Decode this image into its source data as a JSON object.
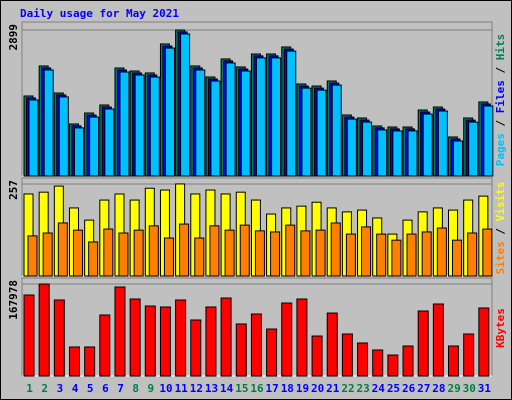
{
  "chart_data": [
    {
      "type": "bar",
      "title": "Daily usage for May 2021",
      "title_color": "#0000ff",
      "ylim": [
        0,
        3018
      ],
      "yticks": [
        2899
      ],
      "legend_separator": " / ",
      "series": [
        {
          "name": "Pages",
          "color": "#00c0ff",
          "values": [
            1510,
            2105,
            1570,
            955,
            1170,
            1330,
            2065,
            2005,
            1965,
            2540,
            2820,
            2105,
            1885,
            2245,
            2085,
            2345,
            2345,
            2480,
            1745,
            1705,
            1805,
            1130,
            1070,
            915,
            895,
            895,
            1230,
            1290,
            695,
            1070,
            1390
          ]
        },
        {
          "name": "Files",
          "color": "#0000ff",
          "values": [
            1550,
            2145,
            1610,
            995,
            1210,
            1370,
            2105,
            2045,
            2005,
            2580,
            2860,
            2145,
            1925,
            2285,
            2125,
            2385,
            2385,
            2520,
            1785,
            1745,
            1845,
            1170,
            1110,
            955,
            935,
            935,
            1270,
            1330,
            735,
            1110,
            1430
          ]
        },
        {
          "name": "Hits",
          "color": "#00805c",
          "values": [
            1589,
            2185,
            1648,
            1033,
            1251,
            1410,
            2145,
            2085,
            2046,
            2622,
            2899,
            2185,
            1966,
            2324,
            2165,
            2423,
            2423,
            2562,
            1827,
            1787,
            1887,
            1211,
            1152,
            993,
            973,
            973,
            1311,
            1370,
            775,
            1152,
            1470
          ]
        }
      ]
    },
    {
      "type": "bar",
      "ylim": [
        0,
        268
      ],
      "yticks": [
        257
      ],
      "legend_separator": " / ",
      "series": [
        {
          "name": "Sites",
          "color": "#ff8000",
          "values": [
            112,
            120,
            148,
            128,
            95,
            131,
            120,
            128,
            140,
            106,
            145,
            106,
            140,
            128,
            142,
            126,
            123,
            142,
            126,
            128,
            148,
            117,
            137,
            117,
            100,
            117,
            123,
            134,
            100,
            120,
            131
          ]
        },
        {
          "name": "Visits",
          "color": "#ffff00",
          "values": [
            229,
            234,
            251,
            190,
            156,
            212,
            229,
            212,
            245,
            240,
            257,
            229,
            240,
            229,
            234,
            212,
            173,
            190,
            195,
            206,
            190,
            179,
            184,
            162,
            117,
            156,
            179,
            190,
            184,
            212,
            223
          ]
        }
      ]
    },
    {
      "type": "bar",
      "ylim": [
        0,
        175300
      ],
      "yticks": [
        167978
      ],
      "legend_separator": " / ",
      "categories": [
        "1",
        "2",
        "3",
        "4",
        "5",
        "6",
        "7",
        "8",
        "9",
        "10",
        "11",
        "12",
        "13",
        "14",
        "15",
        "16",
        "17",
        "18",
        "19",
        "20",
        "21",
        "22",
        "23",
        "24",
        "25",
        "26",
        "27",
        "28",
        "29",
        "30",
        "31"
      ],
      "category_colors": [
        "#008040",
        "#008040",
        "#0000ff",
        "#0000ff",
        "#0000ff",
        "#0000ff",
        "#0000ff",
        "#008040",
        "#008040",
        "#0000ff",
        "#0000ff",
        "#0000ff",
        "#0000ff",
        "#0000ff",
        "#008040",
        "#008040",
        "#0000ff",
        "#0000ff",
        "#0000ff",
        "#0000ff",
        "#0000ff",
        "#008040",
        "#008040",
        "#0000ff",
        "#0000ff",
        "#0000ff",
        "#0000ff",
        "#0000ff",
        "#008040",
        "#008040",
        "#0000ff"
      ],
      "series": [
        {
          "name": "KBytes",
          "color": "#ff0000",
          "values": [
            147900,
            167978,
            138800,
            53000,
            53000,
            111400,
            162500,
            140600,
            127800,
            126000,
            138800,
            102300,
            126000,
            142400,
            95000,
            113200,
            85800,
            133300,
            140600,
            73000,
            115000,
            76700,
            60300,
            47500,
            38300,
            54800,
            118700,
            131500,
            54800,
            76700,
            124200
          ]
        }
      ]
    }
  ]
}
